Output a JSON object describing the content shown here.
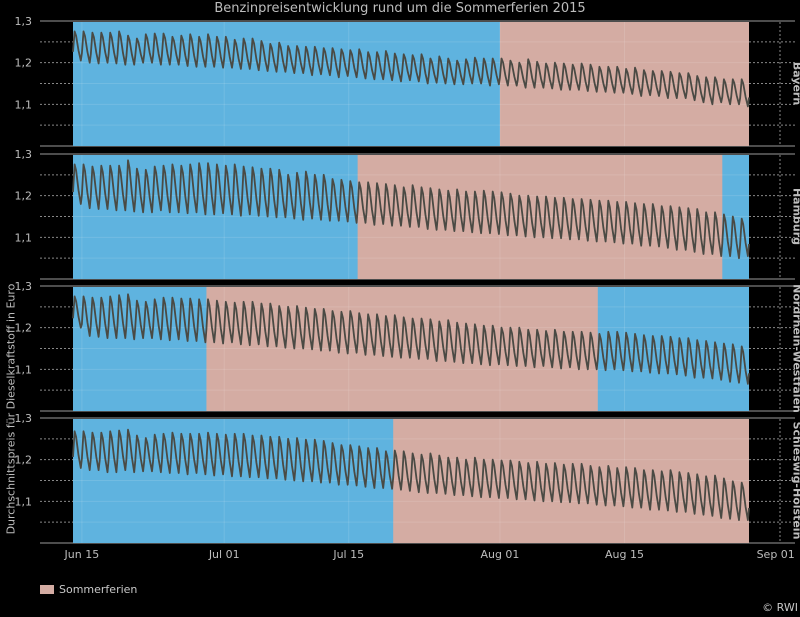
{
  "chart_data": {
    "type": "line",
    "title": "Benzinpreisentwicklung rund um die Sommerferien 2015",
    "ylabel": "Durchschnittspreis für Dieselkraftstoff in Euro",
    "xlabel": "",
    "ylim": [
      1.05,
      1.3
    ],
    "yticks": [
      {
        "value": 1.1,
        "label": "1,1"
      },
      {
        "value": 1.2,
        "label": "1,2"
      },
      {
        "value": 1.3,
        "label": "1,3"
      }
    ],
    "x_start": "2015-06-14",
    "x_end": "2015-08-29",
    "xlim_days": [
      -1.5,
      79.5
    ],
    "xticks": [
      {
        "day": 1,
        "label": "Jun 15"
      },
      {
        "day": 17,
        "label": "Jul 01"
      },
      {
        "day": 31,
        "label": "Jul 15"
      },
      {
        "day": 48,
        "label": "Aug 01"
      },
      {
        "day": 62,
        "label": "Aug 15"
      },
      {
        "day": 79,
        "label": "Sep 01"
      }
    ],
    "data_range_days": [
      0,
      76
    ],
    "colors": {
      "school": "#5fb3df",
      "holiday": "#d4aca3",
      "line": "#4a4a44",
      "background": "#000000"
    },
    "legend": {
      "label": "Sommerferien",
      "position": "bottom-left"
    },
    "credit": "© RWI",
    "series": [
      {
        "name": "Bayern",
        "holiday_days": [
          [
            48,
            76
          ]
        ],
        "daily_high": [
          1.275,
          1.275,
          1.272,
          1.272,
          1.272,
          1.275,
          1.265,
          1.258,
          1.268,
          1.27,
          1.27,
          1.262,
          1.265,
          1.268,
          1.262,
          1.268,
          1.262,
          1.262,
          1.255,
          1.258,
          1.258,
          1.252,
          1.245,
          1.248,
          1.24,
          1.24,
          1.238,
          1.238,
          1.235,
          1.235,
          1.232,
          1.23,
          1.232,
          1.225,
          1.225,
          1.228,
          1.222,
          1.22,
          1.218,
          1.22,
          1.21,
          1.215,
          1.21,
          1.205,
          1.208,
          1.212,
          1.21,
          1.21,
          1.21,
          1.205,
          1.2,
          1.208,
          1.202,
          1.198,
          1.2,
          1.198,
          1.195,
          1.198,
          1.195,
          1.19,
          1.19,
          1.19,
          1.185,
          1.188,
          1.182,
          1.18,
          1.18,
          1.178,
          1.175,
          1.175,
          1.168,
          1.165,
          1.165,
          1.16,
          1.16,
          1.16,
          1.155
        ],
        "daily_low": [
          1.205,
          1.2,
          1.198,
          1.2,
          1.198,
          1.195,
          1.195,
          1.2,
          1.2,
          1.195,
          1.195,
          1.195,
          1.192,
          1.19,
          1.19,
          1.19,
          1.188,
          1.188,
          1.185,
          1.185,
          1.182,
          1.18,
          1.178,
          1.178,
          1.175,
          1.175,
          1.17,
          1.172,
          1.17,
          1.165,
          1.168,
          1.165,
          1.162,
          1.16,
          1.16,
          1.158,
          1.155,
          1.158,
          1.155,
          1.15,
          1.152,
          1.15,
          1.148,
          1.148,
          1.15,
          1.15,
          1.145,
          1.148,
          1.145,
          1.145,
          1.14,
          1.14,
          1.14,
          1.138,
          1.135,
          1.135,
          1.135,
          1.132,
          1.13,
          1.13,
          1.128,
          1.128,
          1.125,
          1.12,
          1.122,
          1.12,
          1.115,
          1.115,
          1.115,
          1.11,
          1.105,
          1.1,
          1.105,
          1.1,
          1.1,
          1.095,
          1.1
        ]
      },
      {
        "name": "Hamburg",
        "holiday_days": [
          [
            32,
            73
          ]
        ],
        "daily_high": [
          1.275,
          1.275,
          1.27,
          1.272,
          1.272,
          1.272,
          1.285,
          1.265,
          1.262,
          1.27,
          1.272,
          1.275,
          1.272,
          1.275,
          1.278,
          1.278,
          1.275,
          1.272,
          1.275,
          1.27,
          1.268,
          1.265,
          1.265,
          1.262,
          1.25,
          1.255,
          1.258,
          1.25,
          1.25,
          1.24,
          1.238,
          1.235,
          1.232,
          1.232,
          1.23,
          1.228,
          1.225,
          1.22,
          1.225,
          1.22,
          1.218,
          1.215,
          1.212,
          1.215,
          1.21,
          1.21,
          1.212,
          1.21,
          1.208,
          1.205,
          1.2,
          1.2,
          1.198,
          1.198,
          1.195,
          1.195,
          1.192,
          1.192,
          1.19,
          1.188,
          1.188,
          1.185,
          1.185,
          1.182,
          1.18,
          1.18,
          1.175,
          1.175,
          1.172,
          1.17,
          1.168,
          1.16,
          1.16,
          1.155,
          1.15,
          1.145,
          1.14
        ],
        "daily_low": [
          1.18,
          1.17,
          1.168,
          1.168,
          1.165,
          1.165,
          1.162,
          1.16,
          1.16,
          1.165,
          1.16,
          1.16,
          1.158,
          1.16,
          1.155,
          1.155,
          1.158,
          1.155,
          1.152,
          1.155,
          1.152,
          1.15,
          1.148,
          1.148,
          1.145,
          1.142,
          1.145,
          1.142,
          1.14,
          1.14,
          1.138,
          1.135,
          1.135,
          1.13,
          1.132,
          1.128,
          1.128,
          1.125,
          1.125,
          1.12,
          1.118,
          1.118,
          1.115,
          1.115,
          1.112,
          1.11,
          1.11,
          1.108,
          1.105,
          1.105,
          1.102,
          1.1,
          1.1,
          1.098,
          1.098,
          1.095,
          1.095,
          1.092,
          1.09,
          1.09,
          1.088,
          1.085,
          1.085,
          1.08,
          1.08,
          1.078,
          1.075,
          1.07,
          1.07,
          1.065,
          1.06,
          1.06,
          1.055,
          1.055,
          1.05,
          1.055,
          1.06
        ]
      },
      {
        "name": "Nordrhein-Westfalen",
        "holiday_days": [
          [
            15,
            59
          ]
        ],
        "daily_high": [
          1.275,
          1.275,
          1.272,
          1.272,
          1.275,
          1.278,
          1.28,
          1.265,
          1.262,
          1.268,
          1.272,
          1.272,
          1.27,
          1.27,
          1.268,
          1.268,
          1.265,
          1.262,
          1.26,
          1.262,
          1.262,
          1.258,
          1.258,
          1.252,
          1.25,
          1.252,
          1.248,
          1.245,
          1.245,
          1.24,
          1.238,
          1.24,
          1.235,
          1.232,
          1.232,
          1.228,
          1.23,
          1.225,
          1.222,
          1.222,
          1.22,
          1.215,
          1.218,
          1.212,
          1.21,
          1.208,
          1.205,
          1.205,
          1.2,
          1.2,
          1.2,
          1.195,
          1.195,
          1.192,
          1.195,
          1.19,
          1.19,
          1.19,
          1.188,
          1.185,
          1.19,
          1.19,
          1.188,
          1.185,
          1.182,
          1.18,
          1.18,
          1.178,
          1.175,
          1.175,
          1.17,
          1.168,
          1.165,
          1.162,
          1.16,
          1.155,
          1.15
        ],
        "daily_low": [
          1.2,
          1.18,
          1.178,
          1.175,
          1.175,
          1.175,
          1.172,
          1.175,
          1.175,
          1.172,
          1.17,
          1.172,
          1.168,
          1.168,
          1.165,
          1.165,
          1.162,
          1.165,
          1.16,
          1.158,
          1.16,
          1.155,
          1.155,
          1.152,
          1.15,
          1.15,
          1.148,
          1.145,
          1.145,
          1.14,
          1.138,
          1.14,
          1.135,
          1.135,
          1.132,
          1.13,
          1.128,
          1.128,
          1.125,
          1.125,
          1.12,
          1.12,
          1.118,
          1.115,
          1.115,
          1.112,
          1.11,
          1.112,
          1.11,
          1.108,
          1.108,
          1.105,
          1.108,
          1.105,
          1.102,
          1.105,
          1.1,
          1.1,
          1.1,
          1.098,
          1.1,
          1.098,
          1.095,
          1.095,
          1.092,
          1.09,
          1.09,
          1.088,
          1.085,
          1.08,
          1.08,
          1.078,
          1.075,
          1.07,
          1.068,
          1.065,
          1.065
        ]
      },
      {
        "name": "Schleswig-Holstein",
        "holiday_days": [
          [
            36,
            76
          ]
        ],
        "daily_high": [
          1.268,
          1.268,
          1.265,
          1.265,
          1.268,
          1.27,
          1.272,
          1.258,
          1.252,
          1.26,
          1.262,
          1.265,
          1.262,
          1.262,
          1.262,
          1.265,
          1.262,
          1.26,
          1.262,
          1.262,
          1.258,
          1.258,
          1.255,
          1.255,
          1.25,
          1.252,
          1.248,
          1.248,
          1.245,
          1.24,
          1.235,
          1.235,
          1.232,
          1.228,
          1.228,
          1.22,
          1.222,
          1.22,
          1.215,
          1.212,
          1.215,
          1.21,
          1.205,
          1.205,
          1.2,
          1.205,
          1.2,
          1.2,
          1.198,
          1.198,
          1.195,
          1.192,
          1.195,
          1.19,
          1.192,
          1.188,
          1.19,
          1.19,
          1.185,
          1.182,
          1.185,
          1.18,
          1.182,
          1.18,
          1.175,
          1.175,
          1.172,
          1.175,
          1.17,
          1.168,
          1.165,
          1.16,
          1.162,
          1.155,
          1.148,
          1.145,
          1.14
        ],
        "daily_low": [
          1.18,
          1.175,
          1.175,
          1.17,
          1.17,
          1.175,
          1.17,
          1.172,
          1.172,
          1.17,
          1.168,
          1.168,
          1.165,
          1.168,
          1.165,
          1.162,
          1.165,
          1.16,
          1.16,
          1.158,
          1.158,
          1.155,
          1.155,
          1.152,
          1.15,
          1.148,
          1.148,
          1.145,
          1.145,
          1.14,
          1.14,
          1.138,
          1.135,
          1.132,
          1.132,
          1.13,
          1.128,
          1.125,
          1.122,
          1.12,
          1.12,
          1.118,
          1.115,
          1.115,
          1.112,
          1.11,
          1.11,
          1.108,
          1.108,
          1.105,
          1.105,
          1.102,
          1.1,
          1.1,
          1.098,
          1.098,
          1.095,
          1.095,
          1.092,
          1.09,
          1.09,
          1.088,
          1.085,
          1.085,
          1.08,
          1.08,
          1.078,
          1.075,
          1.075,
          1.07,
          1.068,
          1.065,
          1.06,
          1.058,
          1.055,
          1.055,
          1.06
        ]
      }
    ]
  }
}
